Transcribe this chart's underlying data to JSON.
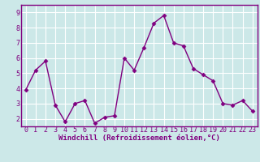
{
  "x": [
    0,
    1,
    2,
    3,
    4,
    5,
    6,
    7,
    8,
    9,
    10,
    11,
    12,
    13,
    14,
    15,
    16,
    17,
    18,
    19,
    20,
    21,
    22,
    23
  ],
  "y": [
    3.9,
    5.2,
    5.8,
    2.9,
    1.8,
    3.0,
    3.2,
    1.7,
    2.1,
    2.2,
    6.0,
    5.2,
    6.7,
    8.3,
    8.8,
    7.0,
    6.8,
    5.3,
    4.9,
    4.5,
    3.0,
    2.9,
    3.2,
    2.5
  ],
  "line_color": "#800080",
  "marker": "D",
  "marker_size": 2.5,
  "line_width": 1.0,
  "bg_color": "#cce8e8",
  "grid_color": "#ffffff",
  "xlabel": "Windchill (Refroidissement éolien,°C)",
  "xlim": [
    -0.5,
    23.5
  ],
  "ylim": [
    1.5,
    9.5
  ],
  "yticks": [
    2,
    3,
    4,
    5,
    6,
    7,
    8,
    9
  ],
  "xticks": [
    0,
    1,
    2,
    3,
    4,
    5,
    6,
    7,
    8,
    9,
    10,
    11,
    12,
    13,
    14,
    15,
    16,
    17,
    18,
    19,
    20,
    21,
    22,
    23
  ],
  "xlabel_color": "#800080",
  "tick_color": "#800080",
  "axis_color": "#800080",
  "xlabel_fontsize": 6.5,
  "tick_fontsize": 6.0
}
